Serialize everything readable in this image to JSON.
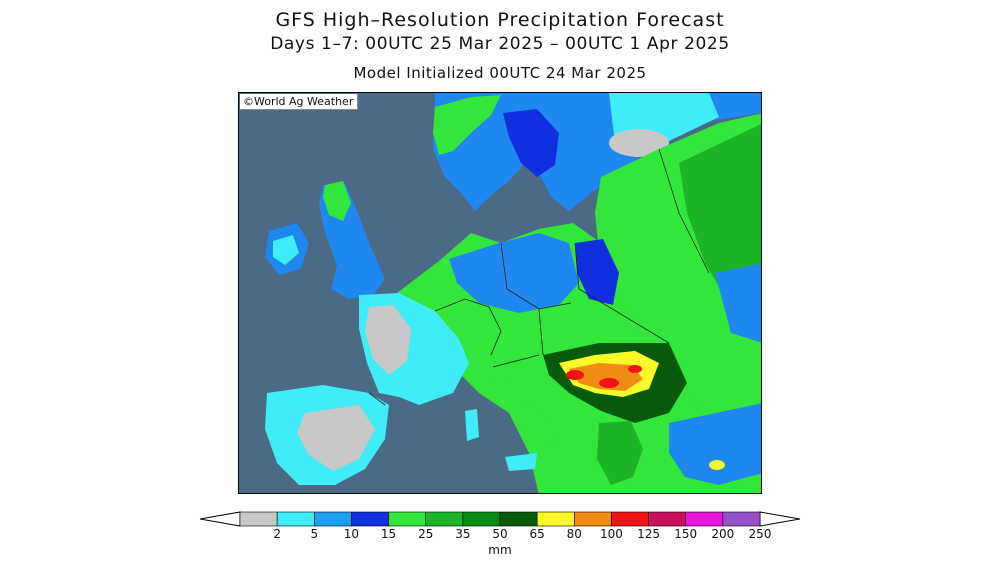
{
  "title": "GFS High–Resolution Precipitation Forecast",
  "subtitle": "Days 1–7: 00UTC 25 Mar 2025 – 00UTC 1 Apr 2025",
  "init": "Model Initialized 00UTC 24 Mar 2025",
  "credit": "©World Ag Weather",
  "legend": {
    "unit": "mm",
    "ticks": [
      "2",
      "5",
      "10",
      "15",
      "25",
      "35",
      "50",
      "65",
      "80",
      "100",
      "125",
      "150",
      "200",
      "250"
    ],
    "colors": [
      "#c8c8c8",
      "#40ecf8",
      "#1ea0f0",
      "#1030e0",
      "#32e63c",
      "#1eb428",
      "#0a8c14",
      "#065a0a",
      "#fafa28",
      "#f08c14",
      "#f01414",
      "#c80f5a",
      "#e614dc",
      "#9650c8"
    ]
  },
  "map_colors": {
    "sea": "#4a6a86",
    "dry": "#c8c8c8",
    "boundary": "#1e1e1e"
  }
}
